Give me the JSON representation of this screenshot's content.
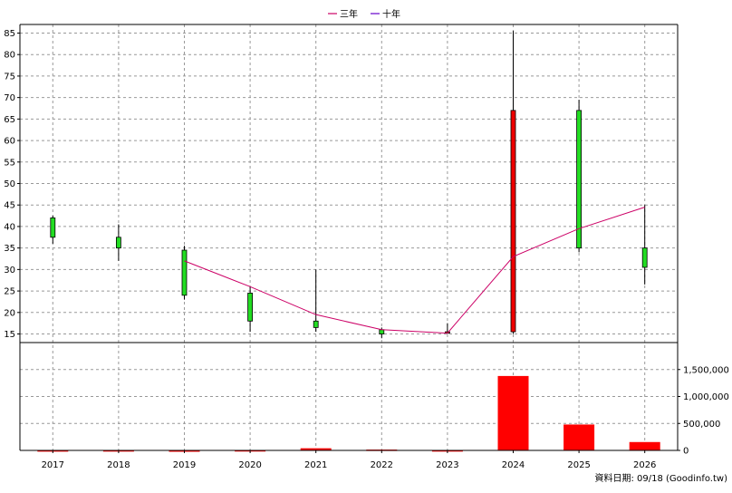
{
  "legend": [
    {
      "label": "三年",
      "color": "#cc0066"
    },
    {
      "label": "十年",
      "color": "#6600cc"
    }
  ],
  "source_note": "資料日期: 09/18  (Goodinfo.tw)",
  "chart_data": [
    {
      "type": "candlestick",
      "categories": [
        "2017",
        "2018",
        "2019",
        "2020",
        "2021",
        "2022",
        "2023",
        "2024",
        "2025",
        "2026"
      ],
      "ylim": [
        13,
        87
      ],
      "yticks": [
        15,
        20,
        25,
        30,
        35,
        40,
        45,
        50,
        55,
        60,
        65,
        70,
        75,
        80,
        85
      ],
      "grid": true,
      "legend_position": "top-center",
      "up_color": "#ee0000",
      "down_color": "#22dd22",
      "candles": [
        {
          "x": "2017",
          "open": 42,
          "close": 37.5,
          "high": 42.5,
          "low": 36
        },
        {
          "x": "2018",
          "open": 37.5,
          "close": 35,
          "high": 40.5,
          "low": 32
        },
        {
          "x": "2019",
          "open": 34.5,
          "close": 24,
          "high": 35.5,
          "low": 23
        },
        {
          "x": "2020",
          "open": 24.5,
          "close": 18,
          "high": 26,
          "low": 15.5
        },
        {
          "x": "2021",
          "open": 18,
          "close": 16.5,
          "high": 30,
          "low": 15.5
        },
        {
          "x": "2022",
          "open": 16,
          "close": 15,
          "high": 16.5,
          "low": 14
        },
        {
          "x": "2023",
          "open": 15.5,
          "close": 15.5,
          "high": 17.5,
          "low": 15
        },
        {
          "x": "2024",
          "open": 15.5,
          "close": 67,
          "high": 85.5,
          "low": 15
        },
        {
          "x": "2025",
          "open": 67,
          "close": 35,
          "high": 69.5,
          "low": 34
        },
        {
          "x": "2026",
          "open": 35,
          "close": 30.5,
          "high": 45,
          "low": 26.5
        }
      ],
      "series": [
        {
          "name": "三年",
          "color": "#cc0066",
          "x": [
            "2019",
            "2020",
            "2021",
            "2022",
            "2023",
            "2024",
            "2025",
            "2026"
          ],
          "values": [
            32,
            26,
            19.5,
            16,
            15.2,
            33,
            39.5,
            44.5
          ]
        }
      ]
    },
    {
      "type": "bar",
      "categories": [
        "2017",
        "2018",
        "2019",
        "2020",
        "2021",
        "2022",
        "2023",
        "2024",
        "2025",
        "2026"
      ],
      "values": [
        2000,
        3000,
        0,
        4000,
        40000,
        15000,
        3000,
        1380000,
        480000,
        155000
      ],
      "ylim": [
        0,
        2000000
      ],
      "yticks": [
        0,
        500000,
        1000000,
        1500000
      ],
      "ytick_labels": [
        "0",
        "500,000",
        "1,000,000",
        "1,500,000"
      ],
      "grid": true,
      "color": "#ff0000"
    }
  ]
}
